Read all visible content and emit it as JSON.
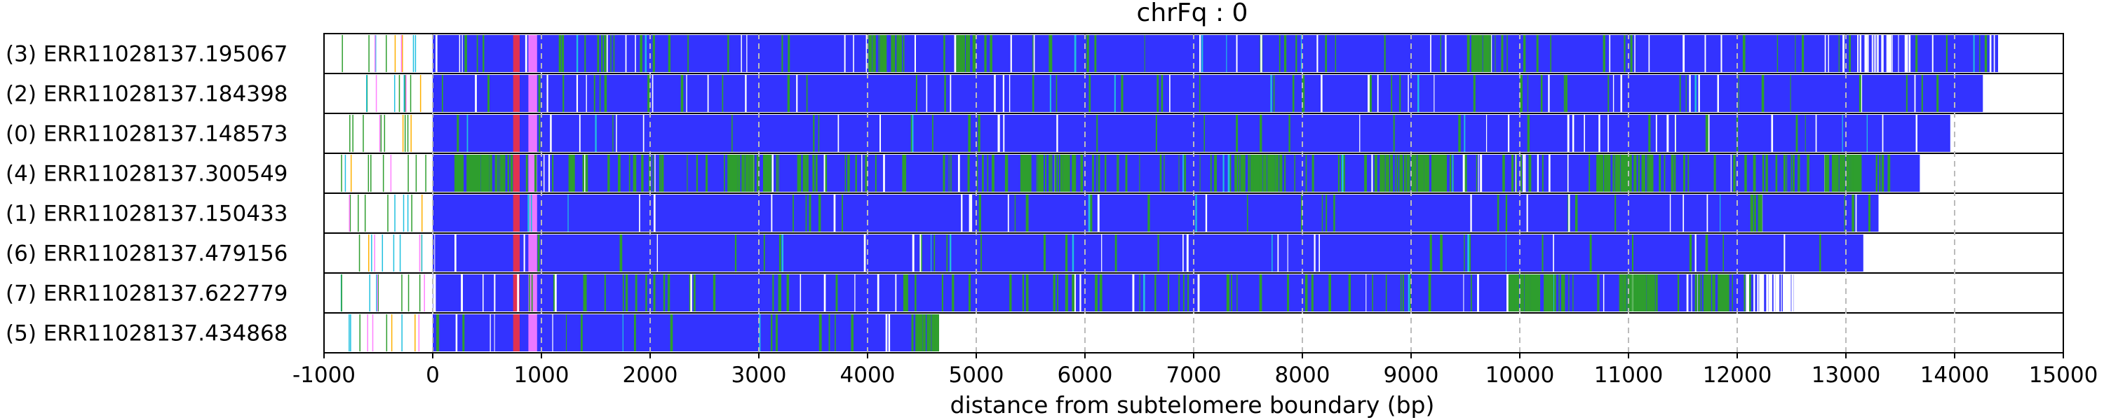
{
  "chart_data": {
    "type": "read-track",
    "title": "chrFq : 0",
    "xlabel": "distance from subtelomere boundary (bp)",
    "xlim": [
      -1000,
      15000
    ],
    "xticks": [
      -1000,
      0,
      1000,
      2000,
      3000,
      4000,
      5000,
      6000,
      7000,
      8000,
      9000,
      10000,
      11000,
      12000,
      13000,
      14000,
      15000
    ],
    "grid": "vertical dashed at x ticks",
    "colors": {
      "main": "#3333ff",
      "green": "#2e9e2e",
      "red": "#ff3333",
      "pink": "#ff80ff",
      "orange": "#ffb000",
      "cyan": "#20c0e0",
      "white": "#ffffff",
      "grid": "#bbbbbb"
    },
    "reads": [
      {
        "label": "(3) ERR11028137.195067",
        "start": -1000,
        "blue_start": 0,
        "end": 14400,
        "green_density": 0.15,
        "white_density": 0.1,
        "seed": 3,
        "green_clusters": [
          [
            4000,
            4300
          ],
          [
            4800,
            5000
          ],
          [
            9500,
            9700
          ]
        ],
        "white_clusters": [
          [
            13100,
            13600
          ]
        ]
      },
      {
        "label": "(2) ERR11028137.184398",
        "start": -1000,
        "blue_start": 0,
        "end": 14260,
        "green_density": 0.1,
        "white_density": 0.08,
        "seed": 2,
        "green_clusters": [],
        "white_clusters": []
      },
      {
        "label": "(0) ERR11028137.148573",
        "start": -1000,
        "blue_start": 0,
        "end": 13960,
        "green_density": 0.06,
        "white_density": 0.08,
        "seed": 0,
        "green_clusters": [],
        "white_clusters": []
      },
      {
        "label": "(4) ERR11028137.300549",
        "start": -1000,
        "blue_start": 0,
        "end": 13680,
        "green_density": 0.4,
        "white_density": 0.08,
        "seed": 4,
        "green_clusters": [
          [
            200,
            700
          ],
          [
            2700,
            3100
          ],
          [
            5400,
            5900
          ],
          [
            7400,
            7800
          ],
          [
            8700,
            9300
          ],
          [
            10700,
            11200
          ],
          [
            12800,
            13200
          ]
        ],
        "white_clusters": []
      },
      {
        "label": "(1) ERR11028137.150433",
        "start": -1000,
        "blue_start": 0,
        "end": 13300,
        "green_density": 0.06,
        "white_density": 0.06,
        "seed": 1,
        "green_clusters": [
          [
            12100,
            12200
          ]
        ],
        "white_clusters": []
      },
      {
        "label": "(6) ERR11028137.479156",
        "start": -1000,
        "blue_start": 0,
        "end": 13160,
        "green_density": 0.06,
        "white_density": 0.06,
        "seed": 6,
        "green_clusters": [],
        "white_clusters": []
      },
      {
        "label": "(7) ERR11028137.622779",
        "start": -1000,
        "blue_start": 0,
        "end": 12520,
        "green_density": 0.2,
        "white_density": 0.1,
        "seed": 7,
        "green_clusters": [
          [
            9900,
            10400
          ],
          [
            10900,
            11300
          ],
          [
            11600,
            11900
          ]
        ],
        "white_clusters": [
          [
            11950,
            12500
          ]
        ]
      },
      {
        "label": "(5) ERR11028137.434868",
        "start": -1000,
        "blue_start": 0,
        "end": 4650,
        "green_density": 0.1,
        "white_density": 0.06,
        "seed": 5,
        "green_clusters": [
          [
            4400,
            4650
          ]
        ],
        "white_clusters": []
      }
    ]
  }
}
